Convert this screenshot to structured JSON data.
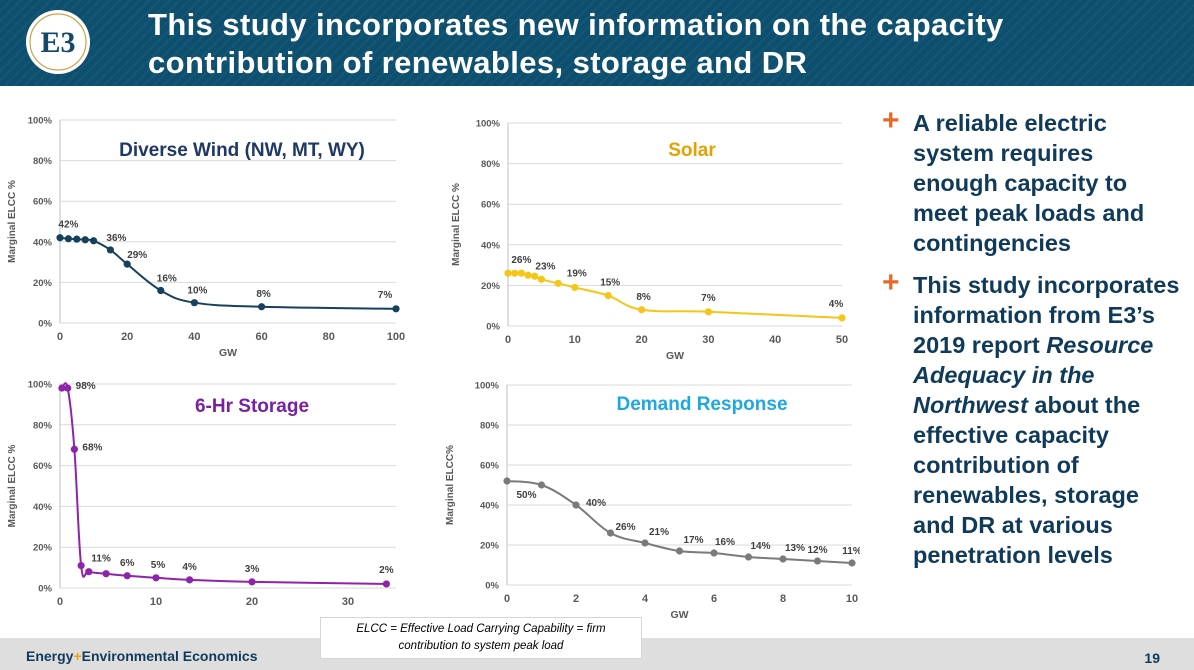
{
  "header": {
    "title_line1": "This study incorporates new information on the capacity",
    "title_line2": "contribution of renewables, storage and DR",
    "logo_text": "E3",
    "background_color": "#0d4f6e"
  },
  "bullets": [
    {
      "text_parts": [
        {
          "t": "A reliable electric system requires enough capacity to meet peak loads and contingencies",
          "i": false
        }
      ]
    },
    {
      "text_parts": [
        {
          "t": "This study incorporates information from E3’s 2019 report ",
          "i": false
        },
        {
          "t": "Resource Adequacy in the Northwest",
          "i": true
        },
        {
          "t": " about the effective capacity contribution of renewables, storage and DR at various penetration levels",
          "i": false
        }
      ]
    }
  ],
  "footnote": {
    "line1": "ELCC = Effective Load Carrying Capability = firm",
    "line2": "contribution to system peak load"
  },
  "footer": {
    "brand_part1": "Energy",
    "brand_plus": "+",
    "brand_part2": "Environmental Economics",
    "page_number": "19"
  },
  "chart_data": [
    {
      "type": "line",
      "title": "Diverse Wind (NW, MT, WY)",
      "title_color": "#1f3864",
      "series_color": "#17405d",
      "xlabel": "GW",
      "ylabel": "Marginal ELCC %",
      "xlim": [
        0,
        100
      ],
      "ylim": [
        0,
        100
      ],
      "xticks": [
        0,
        20,
        40,
        60,
        80,
        100
      ],
      "yticks": [
        0,
        20,
        40,
        60,
        80,
        100
      ],
      "ytick_labels": [
        "0%",
        "20%",
        "40%",
        "60%",
        "80%",
        "100%"
      ],
      "x": [
        0,
        2.5,
        5,
        7.5,
        10,
        15,
        20,
        30,
        40,
        60,
        100
      ],
      "y": [
        42,
        41.5,
        41.3,
        41,
        40.5,
        36,
        29,
        16,
        10,
        8,
        7
      ],
      "labels": [
        {
          "x": 2.5,
          "y": 42,
          "text": "42%",
          "dy": -10,
          "dx": 0
        },
        {
          "x": 15,
          "y": 36,
          "text": "36%",
          "dy": -9,
          "dx": 6
        },
        {
          "x": 20,
          "y": 29,
          "text": "29%",
          "dy": -6,
          "dx": 10
        },
        {
          "x": 30,
          "y": 16,
          "text": "16%",
          "dy": -9,
          "dx": 6
        },
        {
          "x": 40,
          "y": 10,
          "text": "10%",
          "dy": -9,
          "dx": 3
        },
        {
          "x": 60,
          "y": 8,
          "text": "8%",
          "dy": -10,
          "dx": 2
        },
        {
          "x": 100,
          "y": 7,
          "text": "7%",
          "dy": -11,
          "dx": -11
        }
      ]
    },
    {
      "type": "line",
      "title": "Solar",
      "title_color": "#e8a000",
      "series_color": "#f5c518",
      "xlabel": "GW",
      "ylabel": "Marginal ELCC %",
      "xlim": [
        0,
        50
      ],
      "ylim": [
        0,
        100
      ],
      "xticks": [
        0,
        10,
        20,
        30,
        40,
        50
      ],
      "yticks": [
        0,
        20,
        40,
        60,
        80,
        100
      ],
      "ytick_labels": [
        "0%",
        "20%",
        "40%",
        "60%",
        "80%",
        "100%"
      ],
      "x": [
        0,
        1,
        2,
        3,
        4,
        5,
        7.5,
        10,
        15,
        20,
        30,
        50
      ],
      "y": [
        26,
        26,
        26,
        25,
        24.5,
        23,
        21,
        19,
        15,
        8,
        7,
        4
      ],
      "labels": [
        {
          "x": 2,
          "y": 26,
          "text": "26%",
          "dy": -10,
          "dx": 0
        },
        {
          "x": 5,
          "y": 23,
          "text": "23%",
          "dy": -10,
          "dx": 4
        },
        {
          "x": 10,
          "y": 19,
          "text": "19%",
          "dy": -11,
          "dx": 2
        },
        {
          "x": 15,
          "y": 15,
          "text": "15%",
          "dy": -10,
          "dx": 2
        },
        {
          "x": 20,
          "y": 8,
          "text": "8%",
          "dy": -10,
          "dx": 2
        },
        {
          "x": 30,
          "y": 7,
          "text": "7%",
          "dy": -11,
          "dx": 0
        },
        {
          "x": 50,
          "y": 4,
          "text": "4%",
          "dy": -11,
          "dx": -6
        }
      ]
    },
    {
      "type": "line",
      "title": "6-Hr Storage",
      "title_color": "#7b1fa2",
      "series_color": "#8e24aa",
      "xlabel": "GW",
      "ylabel": "Marginal ELCC %",
      "xlim": [
        0,
        35
      ],
      "ylim": [
        0,
        100
      ],
      "xticks": [
        0,
        10,
        20,
        30
      ],
      "yticks": [
        0,
        20,
        40,
        60,
        80,
        100
      ],
      "ytick_labels": [
        "0%",
        "20%",
        "40%",
        "60%",
        "80%",
        "100%"
      ],
      "x": [
        0.2,
        0.8,
        1.5,
        2.2,
        3,
        4.8,
        7,
        10,
        13.5,
        20,
        34
      ],
      "y": [
        98,
        98,
        68,
        11,
        8,
        7,
        6,
        5,
        4,
        3,
        2
      ],
      "labels": [
        {
          "x": 0.8,
          "y": 98,
          "text": "98%",
          "dy": 1,
          "dx": 18
        },
        {
          "x": 1.5,
          "y": 68,
          "text": "68%",
          "dy": 1,
          "dx": 18
        },
        {
          "x": 2.2,
          "y": 11,
          "text": "11%",
          "dy": -4,
          "dx": 20
        },
        {
          "x": 7,
          "y": 6,
          "text": "6%",
          "dy": -10,
          "dx": 0
        },
        {
          "x": 10,
          "y": 5,
          "text": "5%",
          "dy": -10,
          "dx": 2
        },
        {
          "x": 13.5,
          "y": 4,
          "text": "4%",
          "dy": -10,
          "dx": 0
        },
        {
          "x": 20,
          "y": 3,
          "text": "3%",
          "dy": -10,
          "dx": 0
        },
        {
          "x": 34,
          "y": 2,
          "text": "2%",
          "dy": -11,
          "dx": 0
        }
      ]
    },
    {
      "type": "line",
      "title": "Demand Response",
      "title_color": "#1ea7e0",
      "series_color": "#7a7a7a",
      "xlabel": "GW",
      "ylabel": "Marginal ELCC%",
      "xlim": [
        0,
        10
      ],
      "ylim": [
        0,
        100
      ],
      "xticks": [
        0,
        2,
        4,
        6,
        8,
        10
      ],
      "yticks": [
        0,
        20,
        40,
        60,
        80,
        100
      ],
      "ytick_labels": [
        "0%",
        "20%",
        "40%",
        "60%",
        "80%",
        "100%"
      ],
      "x": [
        0,
        1,
        2,
        3,
        4,
        5,
        6,
        7,
        8,
        9,
        10
      ],
      "y": [
        52,
        50,
        40,
        26,
        21,
        17,
        16,
        14,
        13,
        12,
        11
      ],
      "labels": [
        {
          "x": 1,
          "y": 50,
          "text": "50%",
          "dy": 13,
          "dx": -15
        },
        {
          "x": 2,
          "y": 40,
          "text": "40%",
          "dy": 1,
          "dx": 20
        },
        {
          "x": 3,
          "y": 26,
          "text": "26%",
          "dy": -3,
          "dx": 15
        },
        {
          "x": 4,
          "y": 21,
          "text": "21%",
          "dy": -8,
          "dx": 14
        },
        {
          "x": 5,
          "y": 17,
          "text": "17%",
          "dy": -8,
          "dx": 14
        },
        {
          "x": 6,
          "y": 16,
          "text": "16%",
          "dy": -8,
          "dx": 11
        },
        {
          "x": 7,
          "y": 14,
          "text": "14%",
          "dy": -8,
          "dx": 12
        },
        {
          "x": 8,
          "y": 13,
          "text": "13%",
          "dy": -8,
          "dx": 12
        },
        {
          "x": 9,
          "y": 12,
          "text": "12%",
          "dy": -8,
          "dx": 0
        },
        {
          "x": 10,
          "y": 11,
          "text": "11%",
          "dy": -9,
          "dx": 0
        }
      ]
    }
  ]
}
